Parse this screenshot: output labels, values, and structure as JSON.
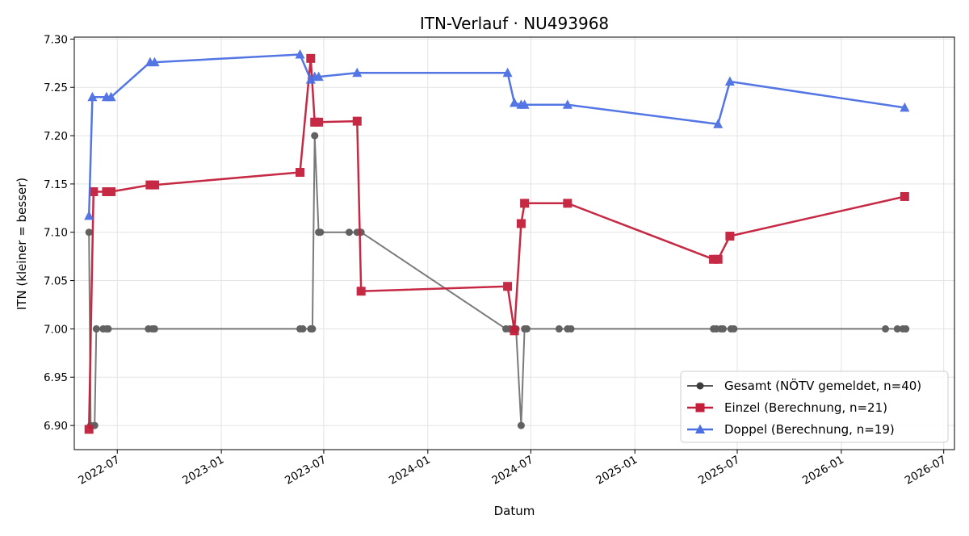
{
  "chart_data": {
    "type": "line",
    "title": "ITN-Verlauf · NU493968",
    "xlabel": "Datum",
    "ylabel": "ITN  (kleiner = besser)",
    "ylim": [
      6.875,
      7.302
    ],
    "xlim": [
      "2022-04-16",
      "2026-07-20"
    ],
    "yticks": [
      6.9,
      6.95,
      7.0,
      7.05,
      7.1,
      7.15,
      7.2,
      7.25,
      7.3
    ],
    "xticks": [
      "2022-07",
      "2023-01",
      "2023-07",
      "2024-01",
      "2024-07",
      "2025-01",
      "2025-07",
      "2026-01",
      "2026-07"
    ],
    "grid": true,
    "legend_position": "lower-right",
    "series": [
      {
        "name": "Gesamt (NÖTV gemeldet, n=40)",
        "color": "#595959",
        "marker": "circle",
        "points": [
          [
            "2022-05-12",
            7.1
          ],
          [
            "2022-05-15",
            6.9
          ],
          [
            "2022-05-22",
            6.9
          ],
          [
            "2022-05-25",
            7.0
          ],
          [
            "2022-06-06",
            7.0
          ],
          [
            "2022-06-12",
            7.0
          ],
          [
            "2022-06-15",
            7.0
          ],
          [
            "2022-08-25",
            7.0
          ],
          [
            "2022-09-01",
            7.0
          ],
          [
            "2022-09-05",
            7.0
          ],
          [
            "2023-05-20",
            7.0
          ],
          [
            "2023-05-25",
            7.0
          ],
          [
            "2023-06-08",
            7.0
          ],
          [
            "2023-06-11",
            7.0
          ],
          [
            "2023-06-15",
            7.2
          ],
          [
            "2023-06-22",
            7.1
          ],
          [
            "2023-06-25",
            7.1
          ],
          [
            "2023-08-15",
            7.1
          ],
          [
            "2023-08-29",
            7.1
          ],
          [
            "2023-09-05",
            7.1
          ],
          [
            "2024-05-18",
            7.0
          ],
          [
            "2024-05-25",
            7.0
          ],
          [
            "2024-05-31",
            7.0
          ],
          [
            "2024-06-05",
            7.0
          ],
          [
            "2024-06-14",
            6.9
          ],
          [
            "2024-06-20",
            7.0
          ],
          [
            "2024-06-24",
            7.0
          ],
          [
            "2024-08-20",
            7.0
          ],
          [
            "2024-09-04",
            7.0
          ],
          [
            "2024-09-10",
            7.0
          ],
          [
            "2025-05-20",
            7.0
          ],
          [
            "2025-05-25",
            7.0
          ],
          [
            "2025-06-02",
            7.0
          ],
          [
            "2025-06-06",
            7.0
          ],
          [
            "2025-06-20",
            7.0
          ],
          [
            "2025-06-25",
            7.0
          ],
          [
            "2026-03-20",
            7.0
          ],
          [
            "2026-04-10",
            7.0
          ],
          [
            "2026-04-20",
            7.0
          ],
          [
            "2026-04-25",
            7.0
          ]
        ]
      },
      {
        "name": "Einzel (Berechnung, n=21)",
        "color": "#c41e3a",
        "marker": "square",
        "points": [
          [
            "2022-05-12",
            6.896
          ],
          [
            "2022-05-20",
            7.142
          ],
          [
            "2022-06-12",
            7.142
          ],
          [
            "2022-06-20",
            7.142
          ],
          [
            "2022-08-28",
            7.149
          ],
          [
            "2022-09-05",
            7.149
          ],
          [
            "2023-05-20",
            7.162
          ],
          [
            "2023-06-08",
            7.28
          ],
          [
            "2023-06-15",
            7.214
          ],
          [
            "2023-06-22",
            7.214
          ],
          [
            "2023-08-29",
            7.215
          ],
          [
            "2023-09-05",
            7.039
          ],
          [
            "2024-05-21",
            7.044
          ],
          [
            "2024-06-02",
            6.998
          ],
          [
            "2024-06-14",
            7.109
          ],
          [
            "2024-06-20",
            7.13
          ],
          [
            "2024-09-04",
            7.13
          ],
          [
            "2025-05-20",
            7.072
          ],
          [
            "2025-05-28",
            7.072
          ],
          [
            "2025-06-18",
            7.096
          ],
          [
            "2026-04-23",
            7.137
          ]
        ]
      },
      {
        "name": "Doppel (Berechnung, n=19)",
        "color": "#4a6fe3",
        "marker": "triangle",
        "points": [
          [
            "2022-05-12",
            7.117
          ],
          [
            "2022-05-18",
            7.24
          ],
          [
            "2022-06-12",
            7.24
          ],
          [
            "2022-06-20",
            7.24
          ],
          [
            "2022-08-28",
            7.276
          ],
          [
            "2022-09-05",
            7.276
          ],
          [
            "2023-05-20",
            7.284
          ],
          [
            "2023-06-08",
            7.258
          ],
          [
            "2023-06-15",
            7.261
          ],
          [
            "2023-06-22",
            7.261
          ],
          [
            "2023-08-29",
            7.265
          ],
          [
            "2024-05-21",
            7.265
          ],
          [
            "2024-06-02",
            7.234
          ],
          [
            "2024-06-14",
            7.232
          ],
          [
            "2024-06-20",
            7.232
          ],
          [
            "2024-09-04",
            7.232
          ],
          [
            "2025-05-28",
            7.212
          ],
          [
            "2025-06-18",
            7.256
          ],
          [
            "2026-04-23",
            7.229
          ]
        ]
      }
    ]
  }
}
